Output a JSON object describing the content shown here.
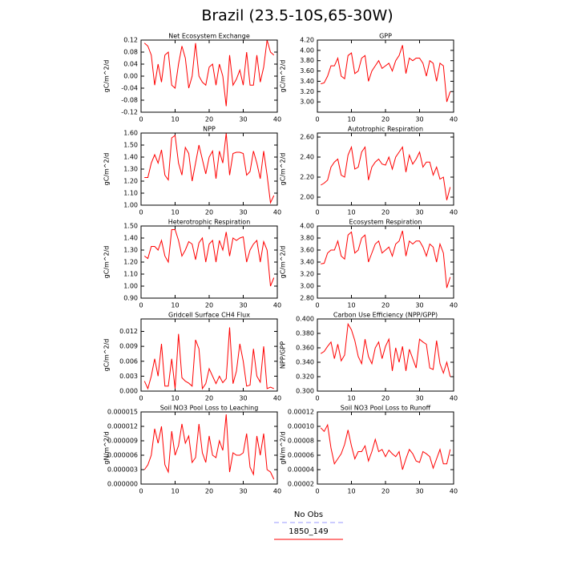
{
  "title": "Brazil (23.5-10S,65-30W)",
  "legend": [
    {
      "name": "No Obs",
      "color": "#9999ff",
      "dash": true
    },
    {
      "name": "1850_149",
      "color": "#ff0000",
      "dash": false
    }
  ],
  "chart_data": [
    {
      "type": "line",
      "title": "Net Ecosystem Exchange",
      "ylabel": "gC/m^2/d",
      "color": "#ff0000",
      "x": [
        1,
        2,
        3,
        4,
        5,
        6,
        7,
        8,
        9,
        10,
        11,
        12,
        13,
        14,
        15,
        16,
        17,
        18,
        19,
        20,
        21,
        22,
        23,
        24,
        25,
        26,
        27,
        28,
        29,
        30,
        31,
        32,
        33,
        34,
        35,
        36,
        37,
        38,
        39
      ],
      "values": [
        0.11,
        0.1,
        0.07,
        -0.03,
        0.04,
        -0.02,
        0.07,
        0.08,
        -0.03,
        -0.04,
        0.04,
        0.1,
        0.06,
        -0.04,
        0.0,
        0.11,
        0.0,
        -0.02,
        -0.03,
        0.03,
        0.04,
        -0.03,
        0.04,
        0.0,
        -0.1,
        0.07,
        -0.03,
        -0.01,
        0.02,
        -0.03,
        0.08,
        -0.03,
        -0.03,
        0.07,
        -0.02,
        0.03,
        0.12,
        0.08,
        0.07
      ],
      "xlim": [
        0,
        40
      ],
      "xticks": [
        0,
        10,
        20,
        30,
        40
      ],
      "ylim": [
        -0.12,
        0.12
      ],
      "yticks": [
        -0.12,
        -0.08,
        -0.04,
        {
          "value": 0,
          "label": "0.00"
        },
        0.04,
        0.08,
        0.12
      ]
    },
    {
      "type": "line",
      "title": "GPP",
      "ylabel": "gC/m^2/d",
      "color": "#ff0000",
      "x": [
        1,
        2,
        3,
        4,
        5,
        6,
        7,
        8,
        9,
        10,
        11,
        12,
        13,
        14,
        15,
        16,
        17,
        18,
        19,
        20,
        21,
        22,
        23,
        24,
        25,
        26,
        27,
        28,
        29,
        30,
        31,
        32,
        33,
        34,
        35,
        36,
        37,
        38,
        39
      ],
      "values": [
        3.35,
        3.37,
        3.5,
        3.7,
        3.7,
        3.85,
        3.5,
        3.45,
        3.9,
        3.95,
        3.55,
        3.6,
        3.85,
        3.9,
        3.4,
        3.6,
        3.7,
        3.8,
        3.65,
        3.7,
        3.75,
        3.6,
        3.8,
        3.9,
        4.1,
        3.55,
        3.85,
        3.8,
        3.85,
        3.85,
        3.75,
        3.5,
        3.8,
        3.75,
        3.4,
        3.75,
        3.7,
        3.0,
        3.2
      ],
      "xlim": [
        0,
        40
      ],
      "xticks": [
        0,
        10,
        20,
        30,
        40
      ],
      "ylim": [
        2.8,
        4.2
      ],
      "yticks": [
        {
          "value": 3,
          "label": "3.00"
        },
        {
          "value": 3.2,
          "label": "3.20"
        },
        {
          "value": 3.4,
          "label": "3.40"
        },
        {
          "value": 3.6,
          "label": "3.60"
        },
        {
          "value": 3.8,
          "label": "3.80"
        },
        {
          "value": 4,
          "label": "4.00"
        },
        {
          "value": 4.2,
          "label": "4.20"
        }
      ]
    },
    {
      "type": "line",
      "title": "NPP",
      "ylabel": "gC/m^2/d",
      "color": "#ff0000",
      "x": [
        1,
        2,
        3,
        4,
        5,
        6,
        7,
        8,
        9,
        10,
        11,
        12,
        13,
        14,
        15,
        16,
        17,
        18,
        19,
        20,
        21,
        22,
        23,
        24,
        25,
        26,
        27,
        28,
        29,
        30,
        31,
        32,
        33,
        34,
        35,
        36,
        37,
        38,
        39
      ],
      "values": [
        1.23,
        1.23,
        1.35,
        1.42,
        1.35,
        1.46,
        1.25,
        1.21,
        1.56,
        1.58,
        1.35,
        1.25,
        1.48,
        1.43,
        1.2,
        1.35,
        1.5,
        1.38,
        1.26,
        1.4,
        1.45,
        1.22,
        1.45,
        1.35,
        1.6,
        1.25,
        1.43,
        1.44,
        1.44,
        1.43,
        1.25,
        1.28,
        1.45,
        1.35,
        1.22,
        1.45,
        1.25,
        1.02,
        1.08
      ],
      "xlim": [
        0,
        40
      ],
      "xticks": [
        0,
        10,
        20,
        30,
        40
      ],
      "ylim": [
        1.0,
        1.6
      ],
      "yticks": [
        {
          "value": 1,
          "label": "1.00"
        },
        {
          "value": 1.1,
          "label": "1.10"
        },
        {
          "value": 1.2,
          "label": "1.20"
        },
        {
          "value": 1.3,
          "label": "1.30"
        },
        {
          "value": 1.4,
          "label": "1.40"
        },
        {
          "value": 1.5,
          "label": "1.50"
        },
        {
          "value": 1.6,
          "label": "1.60"
        }
      ]
    },
    {
      "type": "line",
      "title": "Autotrophic Respiration",
      "ylabel": "gC/m^2/d",
      "color": "#ff0000",
      "x": [
        1,
        2,
        3,
        4,
        5,
        6,
        7,
        8,
        9,
        10,
        11,
        12,
        13,
        14,
        15,
        16,
        17,
        18,
        19,
        20,
        21,
        22,
        23,
        24,
        25,
        26,
        27,
        28,
        29,
        30,
        31,
        32,
        33,
        34,
        35,
        36,
        37,
        38,
        39
      ],
      "values": [
        2.12,
        2.14,
        2.17,
        2.3,
        2.35,
        2.38,
        2.22,
        2.2,
        2.42,
        2.5,
        2.28,
        2.3,
        2.45,
        2.5,
        2.17,
        2.3,
        2.35,
        2.38,
        2.33,
        2.32,
        2.4,
        2.28,
        2.4,
        2.45,
        2.5,
        2.25,
        2.42,
        2.33,
        2.38,
        2.45,
        2.3,
        2.35,
        2.35,
        2.22,
        2.3,
        2.18,
        2.2,
        1.97,
        2.1
      ],
      "xlim": [
        0,
        40
      ],
      "xticks": [
        0,
        10,
        20,
        30,
        40
      ],
      "ylim": [
        1.92,
        2.64
      ],
      "yticks": [
        {
          "value": 2,
          "label": "2.00"
        },
        {
          "value": 2.2,
          "label": "2.20"
        },
        {
          "value": 2.4,
          "label": "2.40"
        },
        {
          "value": 2.6,
          "label": "2.60"
        }
      ]
    },
    {
      "type": "line",
      "title": "Heterotrophic Respiration",
      "ylabel": "gC/m^2/d",
      "color": "#ff0000",
      "x": [
        1,
        2,
        3,
        4,
        5,
        6,
        7,
        8,
        9,
        10,
        11,
        12,
        13,
        14,
        15,
        16,
        17,
        18,
        19,
        20,
        21,
        22,
        23,
        24,
        25,
        26,
        27,
        28,
        29,
        30,
        31,
        32,
        33,
        34,
        35,
        36,
        37,
        38,
        39
      ],
      "values": [
        1.25,
        1.23,
        1.33,
        1.33,
        1.3,
        1.38,
        1.25,
        1.2,
        1.47,
        1.47,
        1.38,
        1.25,
        1.3,
        1.37,
        1.35,
        1.22,
        1.36,
        1.4,
        1.2,
        1.35,
        1.38,
        1.2,
        1.38,
        1.3,
        1.45,
        1.25,
        1.4,
        1.38,
        1.4,
        1.41,
        1.2,
        1.3,
        1.35,
        1.38,
        1.2,
        1.37,
        1.3,
        1.0,
        1.07
      ],
      "xlim": [
        0,
        40
      ],
      "xticks": [
        0,
        10,
        20,
        30,
        40
      ],
      "ylim": [
        0.9,
        1.5
      ],
      "yticks": [
        {
          "value": 0.9,
          "label": "0.90"
        },
        {
          "value": 1,
          "label": "1.00"
        },
        {
          "value": 1.1,
          "label": "1.10"
        },
        {
          "value": 1.2,
          "label": "1.20"
        },
        {
          "value": 1.3,
          "label": "1.30"
        },
        {
          "value": 1.4,
          "label": "1.40"
        },
        {
          "value": 1.5,
          "label": "1.50"
        }
      ]
    },
    {
      "type": "line",
      "title": "Ecosystem Respiration",
      "ylabel": "gC/m^2/d",
      "color": "#ff0000",
      "x": [
        1,
        2,
        3,
        4,
        5,
        6,
        7,
        8,
        9,
        10,
        11,
        12,
        13,
        14,
        15,
        16,
        17,
        18,
        19,
        20,
        21,
        22,
        23,
        24,
        25,
        26,
        27,
        28,
        29,
        30,
        31,
        32,
        33,
        34,
        35,
        36,
        37,
        38,
        39
      ],
      "values": [
        3.37,
        3.38,
        3.55,
        3.6,
        3.6,
        3.75,
        3.5,
        3.45,
        3.85,
        3.9,
        3.55,
        3.6,
        3.8,
        3.85,
        3.4,
        3.55,
        3.7,
        3.75,
        3.55,
        3.6,
        3.65,
        3.5,
        3.7,
        3.75,
        3.92,
        3.5,
        3.75,
        3.7,
        3.75,
        3.75,
        3.65,
        3.5,
        3.7,
        3.65,
        3.4,
        3.7,
        3.55,
        2.97,
        3.15
      ],
      "xlim": [
        0,
        40
      ],
      "xticks": [
        0,
        10,
        20,
        30,
        40
      ],
      "ylim": [
        2.8,
        4.0
      ],
      "yticks": [
        {
          "value": 2.8,
          "label": "2.80"
        },
        {
          "value": 3,
          "label": "3.00"
        },
        {
          "value": 3.2,
          "label": "3.20"
        },
        {
          "value": 3.4,
          "label": "3.40"
        },
        {
          "value": 3.6,
          "label": "3.60"
        },
        {
          "value": 3.8,
          "label": "3.80"
        },
        {
          "value": 4,
          "label": "4.00"
        }
      ]
    },
    {
      "type": "line",
      "title": "Gridcell Surface CH4 Flux",
      "ylabel": "gC/m^2/d",
      "color": "#ff0000",
      "x": [
        1,
        2,
        3,
        4,
        5,
        6,
        7,
        8,
        9,
        10,
        11,
        12,
        13,
        14,
        15,
        16,
        17,
        18,
        19,
        20,
        21,
        22,
        23,
        24,
        25,
        26,
        27,
        28,
        29,
        30,
        31,
        32,
        33,
        34,
        35,
        36,
        37,
        38,
        39
      ],
      "values": [
        0.002,
        0.0005,
        0.003,
        0.0065,
        0.003,
        0.0095,
        0.001,
        0.001,
        0.0065,
        0.0005,
        0.0115,
        0.0027,
        0.002,
        0.0016,
        0.001,
        0.0103,
        0.0085,
        0.0005,
        0.0015,
        0.0045,
        0.003,
        0.0015,
        0.003,
        0.0017,
        0.0025,
        0.0128,
        0.0015,
        0.004,
        0.0095,
        0.006,
        0.001,
        0.0012,
        0.0085,
        0.003,
        0.0018,
        0.009,
        0.0005,
        0.0008,
        0.0005
      ],
      "xlim": [
        0,
        40
      ],
      "xticks": [
        0,
        10,
        20,
        30,
        40
      ],
      "ylim": [
        0,
        0.0145
      ],
      "yticks": [
        {
          "value": 0,
          "label": "0.000"
        },
        0.003,
        0.006,
        0.009,
        0.012
      ]
    },
    {
      "type": "line",
      "title": "Carbon Use Efficiency (NPP/GPP)",
      "ylabel": "NPP/GPP",
      "color": "#ff0000",
      "x": [
        1,
        2,
        3,
        4,
        5,
        6,
        7,
        8,
        9,
        10,
        11,
        12,
        13,
        14,
        15,
        16,
        17,
        18,
        19,
        20,
        21,
        22,
        23,
        24,
        25,
        26,
        27,
        28,
        29,
        30,
        31,
        32,
        33,
        34,
        35,
        36,
        37,
        38,
        39
      ],
      "values": [
        0.352,
        0.355,
        0.362,
        0.368,
        0.345,
        0.365,
        0.342,
        0.35,
        0.393,
        0.385,
        0.37,
        0.348,
        0.338,
        0.372,
        0.348,
        0.338,
        0.36,
        0.368,
        0.345,
        0.362,
        0.372,
        0.328,
        0.36,
        0.34,
        0.362,
        0.328,
        0.358,
        0.345,
        0.332,
        0.372,
        0.368,
        0.365,
        0.332,
        0.33,
        0.37,
        0.338,
        0.325,
        0.34,
        0.32
      ],
      "xlim": [
        0,
        40
      ],
      "xticks": [
        0,
        10,
        20,
        30,
        40
      ],
      "ylim": [
        0.3,
        0.4
      ],
      "yticks": [
        {
          "value": 0.3,
          "label": "0.300"
        },
        {
          "value": 0.32,
          "label": "0.320"
        },
        {
          "value": 0.34,
          "label": "0.340"
        },
        {
          "value": 0.36,
          "label": "0.360"
        },
        {
          "value": 0.38,
          "label": "0.380"
        },
        {
          "value": 0.4,
          "label": "0.400"
        }
      ]
    },
    {
      "type": "line",
      "title": "Soil NO3 Pool Loss to Leaching",
      "ylabel": "gN/m^2/d",
      "color": "#ff0000",
      "x": [
        1,
        2,
        3,
        4,
        5,
        6,
        7,
        8,
        9,
        10,
        11,
        12,
        13,
        14,
        15,
        16,
        17,
        18,
        19,
        20,
        21,
        22,
        23,
        24,
        25,
        26,
        27,
        28,
        29,
        30,
        31,
        32,
        33,
        34,
        35,
        36,
        37,
        38,
        39
      ],
      "values": [
        3e-06,
        4e-06,
        6e-06,
        1.15e-05,
        8.5e-06,
        1.2e-05,
        4e-06,
        2.5e-06,
        1.1e-05,
        6e-06,
        8e-06,
        1.25e-05,
        8.5e-06,
        1e-05,
        4.5e-06,
        5.5e-06,
        1.25e-05,
        6.5e-06,
        4.5e-06,
        1e-05,
        6e-06,
        5.5e-06,
        9e-06,
        7e-06,
        1.45e-05,
        2.5e-06,
        6.5e-06,
        6e-06,
        6e-06,
        6.5e-06,
        1.05e-05,
        3.5e-06,
        2e-06,
        1e-05,
        6e-06,
        1.05e-05,
        3e-06,
        2.5e-06,
        1e-06
      ],
      "xlim": [
        0,
        40
      ],
      "xticks": [
        0,
        10,
        20,
        30,
        40
      ],
      "ylim": [
        0,
        1.5e-05
      ],
      "yticks": [
        {
          "value": 0,
          "label": "0.000000"
        },
        3e-06,
        6e-06,
        9e-06,
        1.2e-05,
        1.5e-05
      ]
    },
    {
      "type": "line",
      "title": "Soil NO3 Pool Loss to Runoff",
      "ylabel": "gN/m^2/d",
      "color": "#ff0000",
      "x": [
        1,
        2,
        3,
        4,
        5,
        6,
        7,
        8,
        9,
        10,
        11,
        12,
        13,
        14,
        15,
        16,
        17,
        18,
        19,
        20,
        21,
        22,
        23,
        24,
        25,
        26,
        27,
        28,
        29,
        30,
        31,
        32,
        33,
        34,
        35,
        36,
        37,
        38,
        39
      ],
      "values": [
        9.8e-05,
        9.3e-05,
        0.000102,
        7e-05,
        4.8e-05,
        5.5e-05,
        6.2e-05,
        7.5e-05,
        9.5e-05,
        7.3e-05,
        5.5e-05,
        6.5e-05,
        6.5e-05,
        7.3e-05,
        5.2e-05,
        6.5e-05,
        8.2e-05,
        6.5e-05,
        6.8e-05,
        5.8e-05,
        6.7e-05,
        6.2e-05,
        5.8e-05,
        6.5e-05,
        4e-05,
        5.5e-05,
        6.8e-05,
        6.2e-05,
        5.2e-05,
        5e-05,
        6.5e-05,
        6.2e-05,
        5.8e-05,
        4.2e-05,
        5.5e-05,
        6.8e-05,
        4.8e-05,
        4.8e-05,
        6.8e-05
      ],
      "xlim": [
        0,
        40
      ],
      "xticks": [
        0,
        10,
        20,
        30,
        40
      ],
      "ylim": [
        2e-05,
        0.00012
      ],
      "yticks": [
        2e-05,
        4e-05,
        6e-05,
        8e-05,
        {
          "value": 0.0001,
          "label": "0.00010"
        },
        0.00012
      ]
    }
  ]
}
